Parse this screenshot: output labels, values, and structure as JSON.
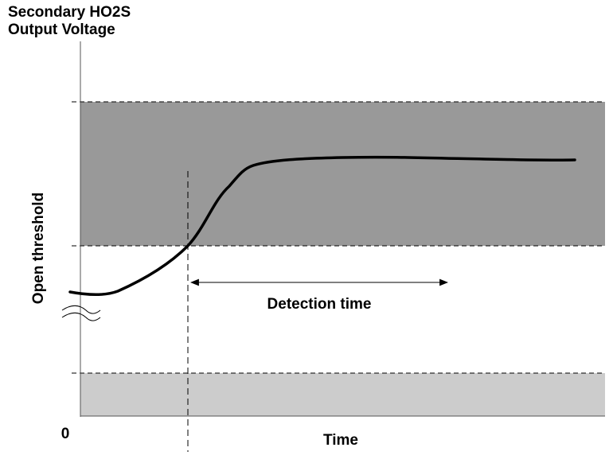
{
  "title": {
    "line1": "Secondary HO2S",
    "line2": "Output Voltage"
  },
  "y_axis_label": "Open threshold",
  "x_axis_label": "Time",
  "origin_label": "0",
  "annotation": {
    "label": "Detection time"
  },
  "colors": {
    "upper_band": "#999999",
    "lower_band": "#cccccc",
    "lines": "#000000",
    "background": "#ffffff"
  },
  "icons": {
    "axis_break": "double-wave-break-icon",
    "arrow": "double-headed-arrow"
  }
}
